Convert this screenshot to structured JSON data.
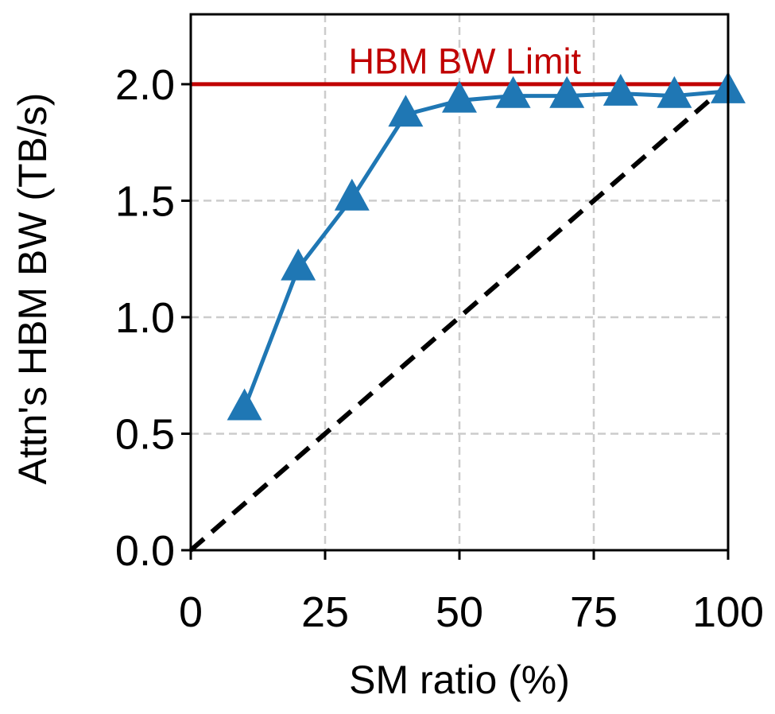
{
  "chart_data": {
    "type": "line",
    "title": "",
    "xlabel": "SM ratio (%)",
    "ylabel": "Attn's HBM BW (TB/s)",
    "xlim": [
      0,
      100
    ],
    "ylim": [
      0,
      2.3
    ],
    "xticks": [
      0,
      25,
      50,
      75,
      100
    ],
    "yticks": [
      0.0,
      0.5,
      1.0,
      1.5,
      2.0
    ],
    "xtick_labels": [
      "0",
      "25",
      "50",
      "75",
      "100"
    ],
    "ytick_labels": [
      "0.0",
      "0.5",
      "1.0",
      "1.5",
      "2.0"
    ],
    "grid": true,
    "series": [
      {
        "name": "",
        "marker": "triangle",
        "color": "#1f77b4",
        "x": [
          10,
          20,
          30,
          40,
          50,
          60,
          70,
          80,
          90,
          100
        ],
        "y": [
          0.61,
          1.21,
          1.51,
          1.87,
          1.93,
          1.95,
          1.95,
          1.96,
          1.95,
          1.97
        ]
      }
    ],
    "reference_lines": [
      {
        "kind": "diagonal",
        "x": [
          0,
          100
        ],
        "y": [
          0,
          2.0
        ],
        "color": "#000000",
        "style": "dashed"
      },
      {
        "kind": "horizontal",
        "y": 2.0,
        "color": "#c00000",
        "label": "HBM BW Limit"
      }
    ],
    "annotations": [
      {
        "text": "HBM BW Limit",
        "x": 51,
        "y": 2.1,
        "color": "#c00000"
      }
    ]
  }
}
